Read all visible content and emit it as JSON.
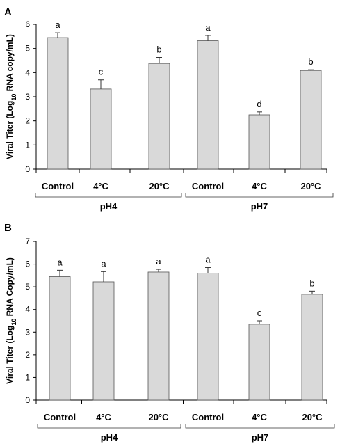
{
  "chart_data": [
    {
      "type": "bar",
      "panel_label": "A",
      "ylabel_parts": [
        "Viral Titer (Log",
        "10",
        " RNA copy/mL)"
      ],
      "ylim": [
        0,
        6
      ],
      "yticks": [
        0,
        1,
        2,
        3,
        4,
        5,
        6
      ],
      "categories": [
        "Control",
        "4°C",
        "20°C",
        "Control",
        "4°C",
        "20°C"
      ],
      "groups": [
        {
          "label": "pH4",
          "categories": [
            0,
            1,
            2
          ]
        },
        {
          "label": "pH7",
          "categories": [
            3,
            4,
            5
          ]
        }
      ],
      "values": [
        5.45,
        3.32,
        4.38,
        5.32,
        2.25,
        4.09
      ],
      "errors": [
        0.2,
        0.38,
        0.25,
        0.22,
        0.12,
        0.03
      ],
      "significance": [
        "a",
        "c",
        "b",
        "a",
        "d",
        "b"
      ],
      "grid": false,
      "legend": "none"
    },
    {
      "type": "bar",
      "panel_label": "B",
      "ylabel_parts": [
        "Viral Titer (Log",
        "10",
        " RNA Copy/mL)"
      ],
      "ylim": [
        0,
        7
      ],
      "yticks": [
        0,
        1,
        2,
        3,
        4,
        5,
        6,
        7
      ],
      "categories": [
        "Control",
        "4°C",
        "20°C",
        "Control",
        "4°C",
        "20°C"
      ],
      "groups": [
        {
          "label": "pH4",
          "categories": [
            0,
            1,
            2
          ]
        },
        {
          "label": "pH7",
          "categories": [
            3,
            4,
            5
          ]
        }
      ],
      "values": [
        5.45,
        5.22,
        5.65,
        5.6,
        3.35,
        4.67
      ],
      "errors": [
        0.28,
        0.45,
        0.12,
        0.25,
        0.15,
        0.14
      ],
      "significance": [
        "a",
        "a",
        "a",
        "a",
        "c",
        "b"
      ],
      "grid": false,
      "legend": "none"
    }
  ]
}
